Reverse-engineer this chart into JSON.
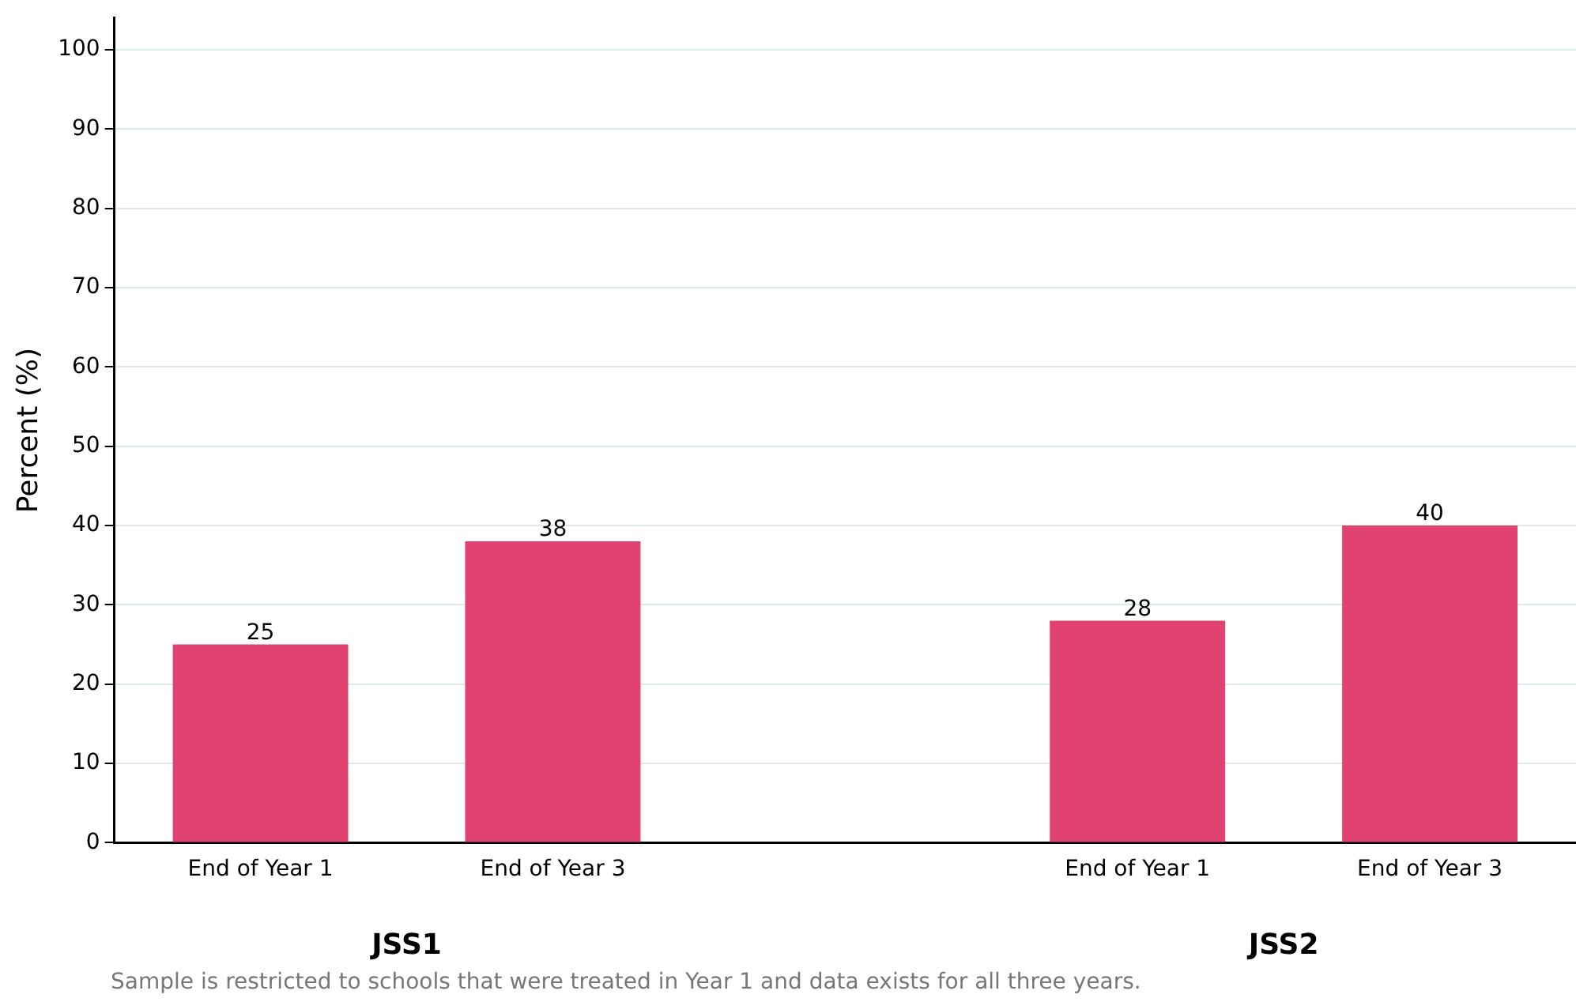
{
  "chart_data": {
    "type": "bar",
    "ylabel": "Percent (%)",
    "categories": [
      "End of Year 1",
      "End of Year 3",
      null,
      "End of Year 1",
      "End of Year 3"
    ],
    "values": [
      25,
      38,
      null,
      28,
      40
    ],
    "color": "#e04372",
    "ylim": [
      0,
      104
    ],
    "yticks": [
      0,
      10,
      20,
      30,
      40,
      50,
      60,
      70,
      80,
      90,
      100
    ],
    "grid": "y",
    "data_labels": true,
    "annotations": [
      "JSS1",
      "JSS2",
      "Sample is restricted to schools that were treated in Year 1 and data exists for all three years."
    ]
  }
}
